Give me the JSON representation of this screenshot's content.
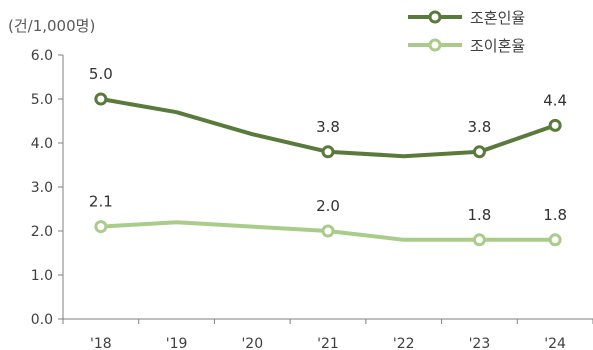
{
  "chart_data": {
    "type": "line",
    "title": "",
    "unit_label": "(건/1,000명)",
    "xlabel": "",
    "ylabel": "",
    "categories": [
      "'18",
      "'19",
      "'20",
      "'21",
      "'22",
      "'23",
      "'24"
    ],
    "y_ticks": [
      "0.0",
      "1.0",
      "2.0",
      "3.0",
      "4.0",
      "5.0",
      "6.0"
    ],
    "ylim": [
      0,
      6
    ],
    "grid": false,
    "legend_position": "top-right",
    "series": [
      {
        "name": "조혼인율",
        "color": "#5a7a3c",
        "values": [
          5.0,
          4.7,
          4.2,
          3.8,
          3.7,
          3.8,
          4.4
        ],
        "labels": [
          "5.0",
          "",
          "",
          "3.8",
          "",
          "3.8",
          "4.4"
        ]
      },
      {
        "name": "조이혼율",
        "color": "#a9cc8a",
        "values": [
          2.1,
          2.2,
          2.1,
          2.0,
          1.8,
          1.8,
          1.8
        ],
        "labels": [
          "2.1",
          "",
          "",
          "2.0",
          "",
          "1.8",
          "1.8"
        ]
      }
    ]
  }
}
